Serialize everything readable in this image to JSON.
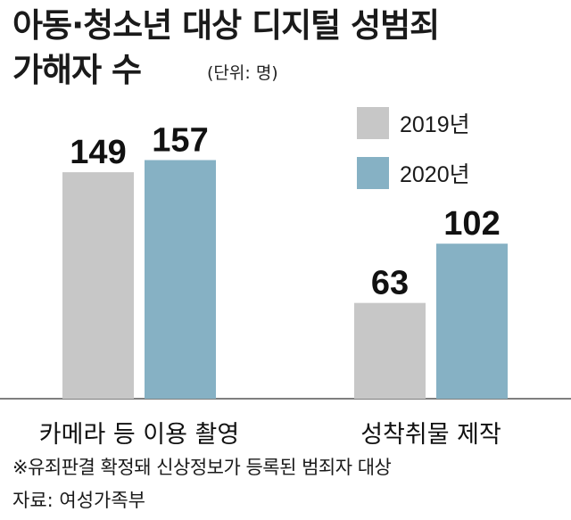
{
  "title_line1": "아동·청소년 대상 디지털 성범죄",
  "title_line2": "가해자 수",
  "unit": "(단위: 명)",
  "footnote": "※유죄판결 확정돼 신상정보가 등록된 범죄자 대상",
  "source": "자료: 여성가족부",
  "colors": {
    "s2019": "#c7c7c7",
    "s2020": "#86b1c4",
    "axis": "#555555"
  },
  "chart_data": {
    "type": "bar",
    "categories": [
      "카메라 등 이용 촬영",
      "성착취물 제작"
    ],
    "series": [
      {
        "name": "2019년",
        "values": [
          149,
          63
        ]
      },
      {
        "name": "2020년",
        "values": [
          157,
          102
        ]
      }
    ],
    "ylim": [
      0,
      170
    ]
  }
}
